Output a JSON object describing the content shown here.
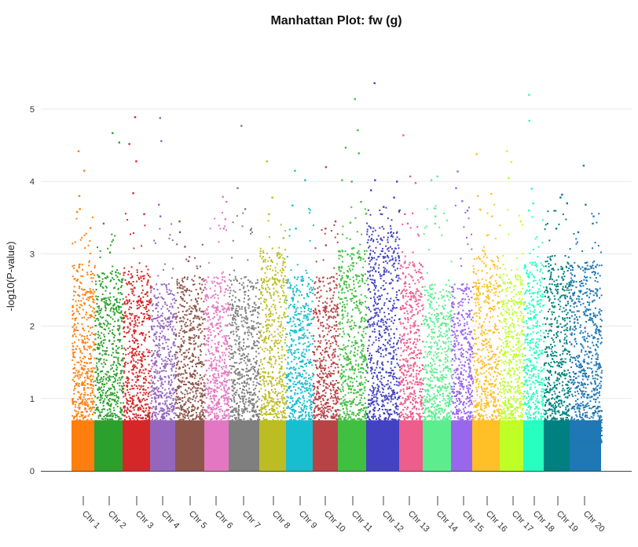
{
  "chart_data": {
    "type": "scatter",
    "title": "Manhattan Plot: fw (g)",
    "ylabel": "-log10(P-value)",
    "ylim": [
      0,
      5.5
    ],
    "yticks": [
      "0",
      "1",
      "2",
      "3",
      "4",
      "5"
    ],
    "grid": true,
    "legend": "none",
    "categories": [
      "Chr 1",
      "Chr 2",
      "Chr 3",
      "Chr 4",
      "Chr 5",
      "Chr 6",
      "Chr 7",
      "Chr 8",
      "Chr 9",
      "Chr 10",
      "Chr 11",
      "Chr 12",
      "Chr 13",
      "Chr 14",
      "Chr 15",
      "Chr 16",
      "Chr 17",
      "Chr 18",
      "Chr 19",
      "Chr 20"
    ],
    "series": [
      {
        "color": "#ff7f0e",
        "density_top": 2.4,
        "top_hits": [
          4.42,
          4.15,
          3.8,
          3.62,
          3.58,
          3.36
        ]
      },
      {
        "color": "#2ca02c",
        "density_top": 2.3,
        "top_hits": [
          4.67,
          4.54,
          3.42,
          3.02
        ]
      },
      {
        "color": "#d62728",
        "density_top": 2.3,
        "top_hits": [
          4.89,
          4.52,
          4.28,
          3.84,
          3.55
        ]
      },
      {
        "color": "#9467bd",
        "density_top": 2.1,
        "top_hits": [
          4.88,
          4.56,
          3.68,
          3.52
        ]
      },
      {
        "color": "#8c564b",
        "density_top": 2.2,
        "top_hits": [
          3.45,
          3.3,
          3.1,
          2.9
        ]
      },
      {
        "color": "#e377c2",
        "density_top": 2.2,
        "top_hits": [
          3.79,
          3.72,
          3.48,
          3.35
        ]
      },
      {
        "color": "#7f7f7f",
        "density_top": 2.2,
        "top_hits": [
          4.77,
          3.91,
          3.62,
          3.33
        ]
      },
      {
        "color": "#bcbd22",
        "density_top": 2.6,
        "top_hits": [
          4.28,
          3.78,
          3.55,
          3.22
        ]
      },
      {
        "color": "#17becf",
        "density_top": 2.2,
        "top_hits": [
          4.15,
          4.02,
          3.67,
          3.35
        ]
      },
      {
        "color": "#b84347",
        "density_top": 2.2,
        "top_hits": [
          4.2,
          3.45,
          3.35,
          3.12
        ]
      },
      {
        "color": "#40bf40",
        "density_top": 2.6,
        "top_hits": [
          5.14,
          4.71,
          4.47,
          4.39,
          4.02,
          4.0,
          3.72
        ]
      },
      {
        "color": "#4242c2",
        "density_top": 2.9,
        "top_hits": [
          5.36,
          4.02,
          4.0,
          3.88,
          3.78,
          3.65
        ]
      },
      {
        "color": "#ee5d8c",
        "density_top": 2.4,
        "top_hits": [
          4.64,
          4.07,
          3.98,
          3.55,
          3.42
        ]
      },
      {
        "color": "#5ced8e",
        "density_top": 2.1,
        "top_hits": [
          4.07,
          4.02,
          3.52,
          3.42
        ]
      },
      {
        "color": "#9966ee",
        "density_top": 2.1,
        "top_hits": [
          4.14,
          3.91,
          3.73,
          3.6
        ]
      },
      {
        "color": "#ffbf26",
        "density_top": 2.5,
        "top_hits": [
          4.38,
          3.83,
          3.8,
          3.52
        ]
      },
      {
        "color": "#bfff26",
        "density_top": 2.3,
        "top_hits": [
          4.42,
          4.27,
          4.05,
          3.45
        ]
      },
      {
        "color": "#26ffc0",
        "density_top": 2.4,
        "top_hits": [
          5.2,
          4.84,
          3.9,
          3.7,
          3.6
        ]
      },
      {
        "color": "#008080",
        "density_top": 2.5,
        "top_hits": [
          3.82,
          3.78,
          3.7,
          3.35
        ]
      },
      {
        "color": "#1f77b4",
        "density_top": 2.4,
        "top_hits": [
          4.22,
          3.68,
          3.52,
          3.42,
          3.3
        ]
      }
    ]
  }
}
